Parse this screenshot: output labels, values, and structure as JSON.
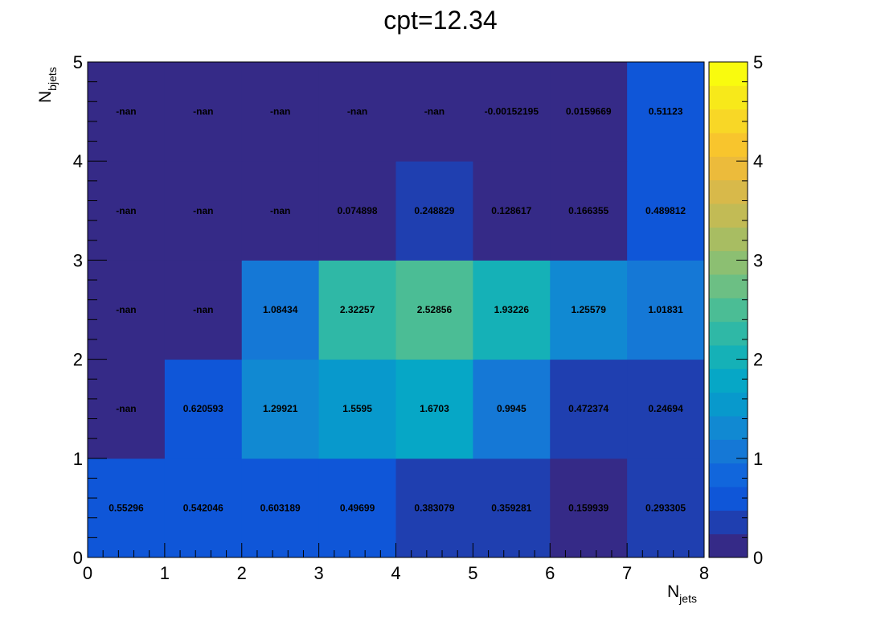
{
  "chart_data": {
    "type": "heatmap",
    "title": "cpt=12.34",
    "xlabel": {
      "main": "N",
      "sub": "jets"
    },
    "ylabel": {
      "main": "N",
      "sub": "bjets"
    },
    "xlim": [
      0,
      8
    ],
    "ylim": [
      0,
      5
    ],
    "zlim": [
      0,
      5
    ],
    "x_ticks": [
      "0",
      "1",
      "2",
      "3",
      "4",
      "5",
      "6",
      "7",
      "8"
    ],
    "y_ticks": [
      "0",
      "1",
      "2",
      "3",
      "4",
      "5"
    ],
    "z_ticks": [
      "0",
      "1",
      "2",
      "3",
      "4",
      "5"
    ],
    "palette": "parula-like (dark blue to yellow)",
    "cells": [
      {
        "x": 0,
        "y": 0,
        "label": "0.55296",
        "value": 0.55296
      },
      {
        "x": 1,
        "y": 0,
        "label": "0.542046",
        "value": 0.542046
      },
      {
        "x": 2,
        "y": 0,
        "label": "0.603189",
        "value": 0.603189
      },
      {
        "x": 3,
        "y": 0,
        "label": "0.49699",
        "value": 0.49699
      },
      {
        "x": 4,
        "y": 0,
        "label": "0.383079",
        "value": 0.383079
      },
      {
        "x": 5,
        "y": 0,
        "label": "0.359281",
        "value": 0.359281
      },
      {
        "x": 6,
        "y": 0,
        "label": "0.159939",
        "value": 0.159939
      },
      {
        "x": 7,
        "y": 0,
        "label": "0.293305",
        "value": 0.293305
      },
      {
        "x": 0,
        "y": 1,
        "label": "-nan",
        "value": null
      },
      {
        "x": 1,
        "y": 1,
        "label": "0.620593",
        "value": 0.620593
      },
      {
        "x": 2,
        "y": 1,
        "label": "1.29921",
        "value": 1.29921
      },
      {
        "x": 3,
        "y": 1,
        "label": "1.5595",
        "value": 1.5595
      },
      {
        "x": 4,
        "y": 1,
        "label": "1.6703",
        "value": 1.6703
      },
      {
        "x": 5,
        "y": 1,
        "label": "0.9945",
        "value": 0.9945
      },
      {
        "x": 6,
        "y": 1,
        "label": "0.472374",
        "value": 0.472374
      },
      {
        "x": 7,
        "y": 1,
        "label": "0.24694",
        "value": 0.24694
      },
      {
        "x": 0,
        "y": 2,
        "label": "-nan",
        "value": null
      },
      {
        "x": 1,
        "y": 2,
        "label": "-nan",
        "value": null
      },
      {
        "x": 2,
        "y": 2,
        "label": "1.08434",
        "value": 1.08434
      },
      {
        "x": 3,
        "y": 2,
        "label": "2.32257",
        "value": 2.32257
      },
      {
        "x": 4,
        "y": 2,
        "label": "2.52856",
        "value": 2.52856
      },
      {
        "x": 5,
        "y": 2,
        "label": "1.93226",
        "value": 1.93226
      },
      {
        "x": 6,
        "y": 2,
        "label": "1.25579",
        "value": 1.25579
      },
      {
        "x": 7,
        "y": 2,
        "label": "1.01831",
        "value": 1.01831
      },
      {
        "x": 0,
        "y": 3,
        "label": "-nan",
        "value": null
      },
      {
        "x": 1,
        "y": 3,
        "label": "-nan",
        "value": null
      },
      {
        "x": 2,
        "y": 3,
        "label": "-nan",
        "value": null
      },
      {
        "x": 3,
        "y": 3,
        "label": "0.074898",
        "value": 0.074898
      },
      {
        "x": 4,
        "y": 3,
        "label": "0.248829",
        "value": 0.248829
      },
      {
        "x": 5,
        "y": 3,
        "label": "0.128617",
        "value": 0.128617
      },
      {
        "x": 6,
        "y": 3,
        "label": "0.166355",
        "value": 0.166355
      },
      {
        "x": 7,
        "y": 3,
        "label": "0.489812",
        "value": 0.489812
      },
      {
        "x": 0,
        "y": 4,
        "label": "-nan",
        "value": null
      },
      {
        "x": 1,
        "y": 4,
        "label": "-nan",
        "value": null
      },
      {
        "x": 2,
        "y": 4,
        "label": "-nan",
        "value": null
      },
      {
        "x": 3,
        "y": 4,
        "label": "-nan",
        "value": null
      },
      {
        "x": 4,
        "y": 4,
        "label": "-nan",
        "value": null
      },
      {
        "x": 5,
        "y": 4,
        "label": "-0.00152195",
        "value": -0.00152195
      },
      {
        "x": 6,
        "y": 4,
        "label": "0.0159669",
        "value": 0.0159669
      },
      {
        "x": 7,
        "y": 4,
        "label": "0.51123",
        "value": 0.51123
      }
    ],
    "colorbar_colors": [
      "#352a87",
      "#1f3fb0",
      "#0f56d8",
      "#1166dc",
      "#1578d6",
      "#1189d2",
      "#0899cc",
      "#06a7c6",
      "#15b1b7",
      "#2fb8a6",
      "#4bbd95",
      "#6cbf84",
      "#8cbf72",
      "#a8bd62",
      "#c2bb55",
      "#d8b94a",
      "#ecbb3b",
      "#f8c52d",
      "#f8d726",
      "#f7e91a",
      "#f9fb0e"
    ]
  }
}
